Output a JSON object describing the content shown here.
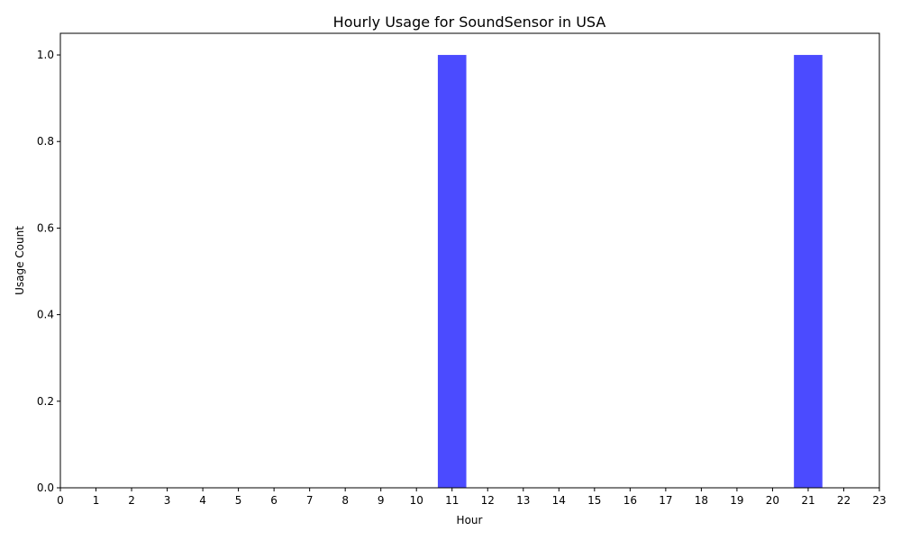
{
  "chart_data": {
    "type": "bar",
    "title": "Hourly Usage for SoundSensor in USA",
    "xlabel": "Hour",
    "ylabel": "Usage Count",
    "categories": [
      0,
      1,
      2,
      3,
      4,
      5,
      6,
      7,
      8,
      9,
      10,
      11,
      12,
      13,
      14,
      15,
      16,
      17,
      18,
      19,
      20,
      21,
      22,
      23
    ],
    "values": [
      0,
      0,
      0,
      0,
      0,
      0,
      0,
      0,
      0,
      0,
      0,
      1,
      0,
      0,
      0,
      0,
      0,
      0,
      0,
      0,
      0,
      1,
      0,
      0
    ],
    "xlim": [
      0,
      23
    ],
    "ylim": [
      0,
      1.05
    ],
    "yticks": [
      "0.0",
      "0.2",
      "0.4",
      "0.6",
      "0.8",
      "1.0"
    ],
    "bar_color": "#4b4bff",
    "grid": false,
    "legend": "none"
  }
}
